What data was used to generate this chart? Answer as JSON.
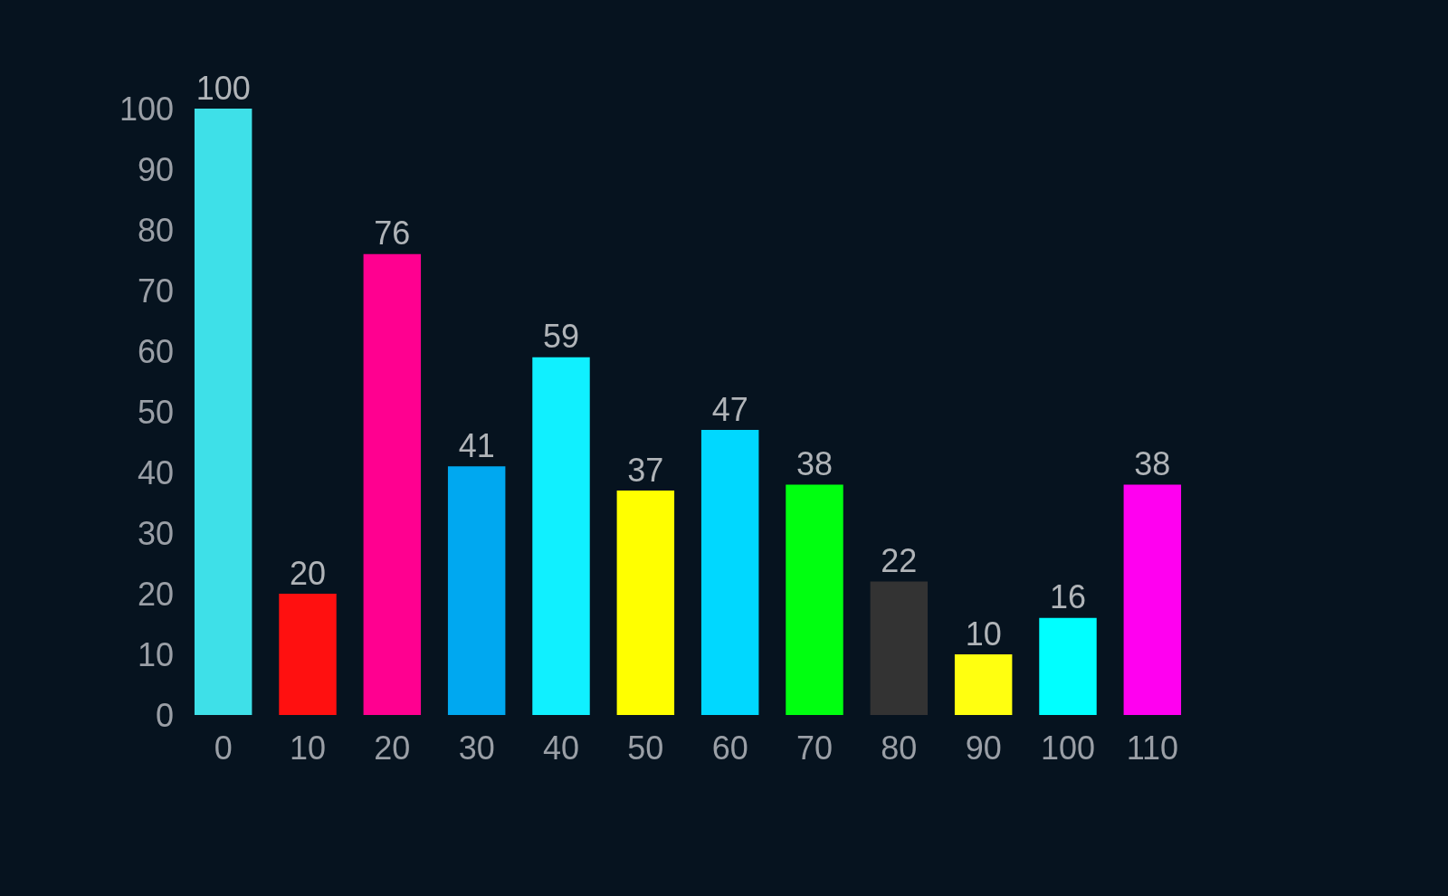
{
  "chart_data": {
    "type": "bar",
    "categories": [
      "0",
      "10",
      "20",
      "30",
      "40",
      "50",
      "60",
      "70",
      "80",
      "90",
      "100",
      "110"
    ],
    "values": [
      100,
      20,
      76,
      41,
      59,
      37,
      47,
      38,
      22,
      10,
      16,
      38
    ],
    "colors": [
      "#3ee0e8",
      "#ff1010",
      "#ff0090",
      "#00a8f0",
      "#10f0ff",
      "#ffff00",
      "#00d8ff",
      "#00ff10",
      "#333333",
      "#ffff10",
      "#00ffff",
      "#ff00f0"
    ],
    "ylim": [
      0,
      100
    ],
    "yticks": [
      0,
      10,
      20,
      30,
      40,
      50,
      60,
      70,
      80,
      90,
      100
    ],
    "data_labels": true
  }
}
